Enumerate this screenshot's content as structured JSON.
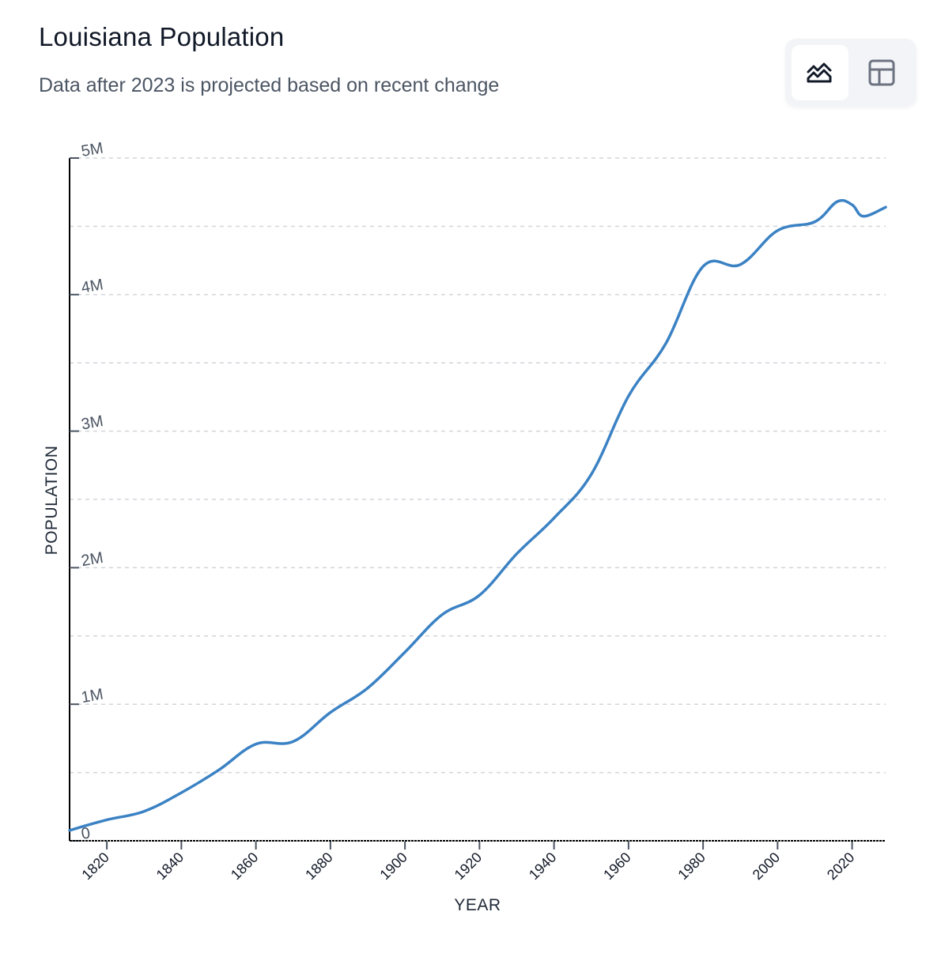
{
  "header": {
    "title": "Louisiana Population",
    "subtitle": "Data after 2023 is projected based on recent change"
  },
  "view_toggle": {
    "options": [
      {
        "name": "chart-view",
        "icon": "area-chart-icon",
        "active": true
      },
      {
        "name": "table-view",
        "icon": "table-icon",
        "active": false
      }
    ]
  },
  "colors": {
    "line": "#3b82c4",
    "grid": "#d1d5db",
    "axis": "#000000",
    "tick": "#4b5563"
  },
  "chart_data": {
    "type": "line",
    "title": "Louisiana Population",
    "subtitle": "Data after 2023 is projected based on recent change",
    "xlabel": "YEAR",
    "ylabel": "POPULATION",
    "xlim": [
      1810,
      2029
    ],
    "ylim": [
      0,
      5000000
    ],
    "x_ticks": [
      1820,
      1840,
      1860,
      1880,
      1900,
      1920,
      1940,
      1960,
      1980,
      2000,
      2020
    ],
    "y_ticks": [
      {
        "value": 0,
        "label": "0"
      },
      {
        "value": 1000000,
        "label": "1M"
      },
      {
        "value": 2000000,
        "label": "2M"
      },
      {
        "value": 3000000,
        "label": "3M"
      },
      {
        "value": 4000000,
        "label": "4M"
      },
      {
        "value": 5000000,
        "label": "5M"
      }
    ],
    "grid_step": 500000,
    "grid": true,
    "projection_after": 2023,
    "series": [
      {
        "name": "Population",
        "x": [
          1810,
          1820,
          1830,
          1840,
          1850,
          1860,
          1870,
          1880,
          1890,
          1900,
          1910,
          1920,
          1930,
          1940,
          1950,
          1960,
          1970,
          1980,
          1990,
          2000,
          2010,
          2016,
          2020,
          2023,
          2029
        ],
        "values": [
          76556,
          153407,
          215739,
          352411,
          517762,
          708002,
          726915,
          939946,
          1118588,
          1381625,
          1656388,
          1798509,
          2101593,
          2363880,
          2683516,
          3257022,
          3641306,
          4205900,
          4219973,
          4468976,
          4533372,
          4681000,
          4657757,
          4573749,
          4640000
        ]
      }
    ]
  }
}
